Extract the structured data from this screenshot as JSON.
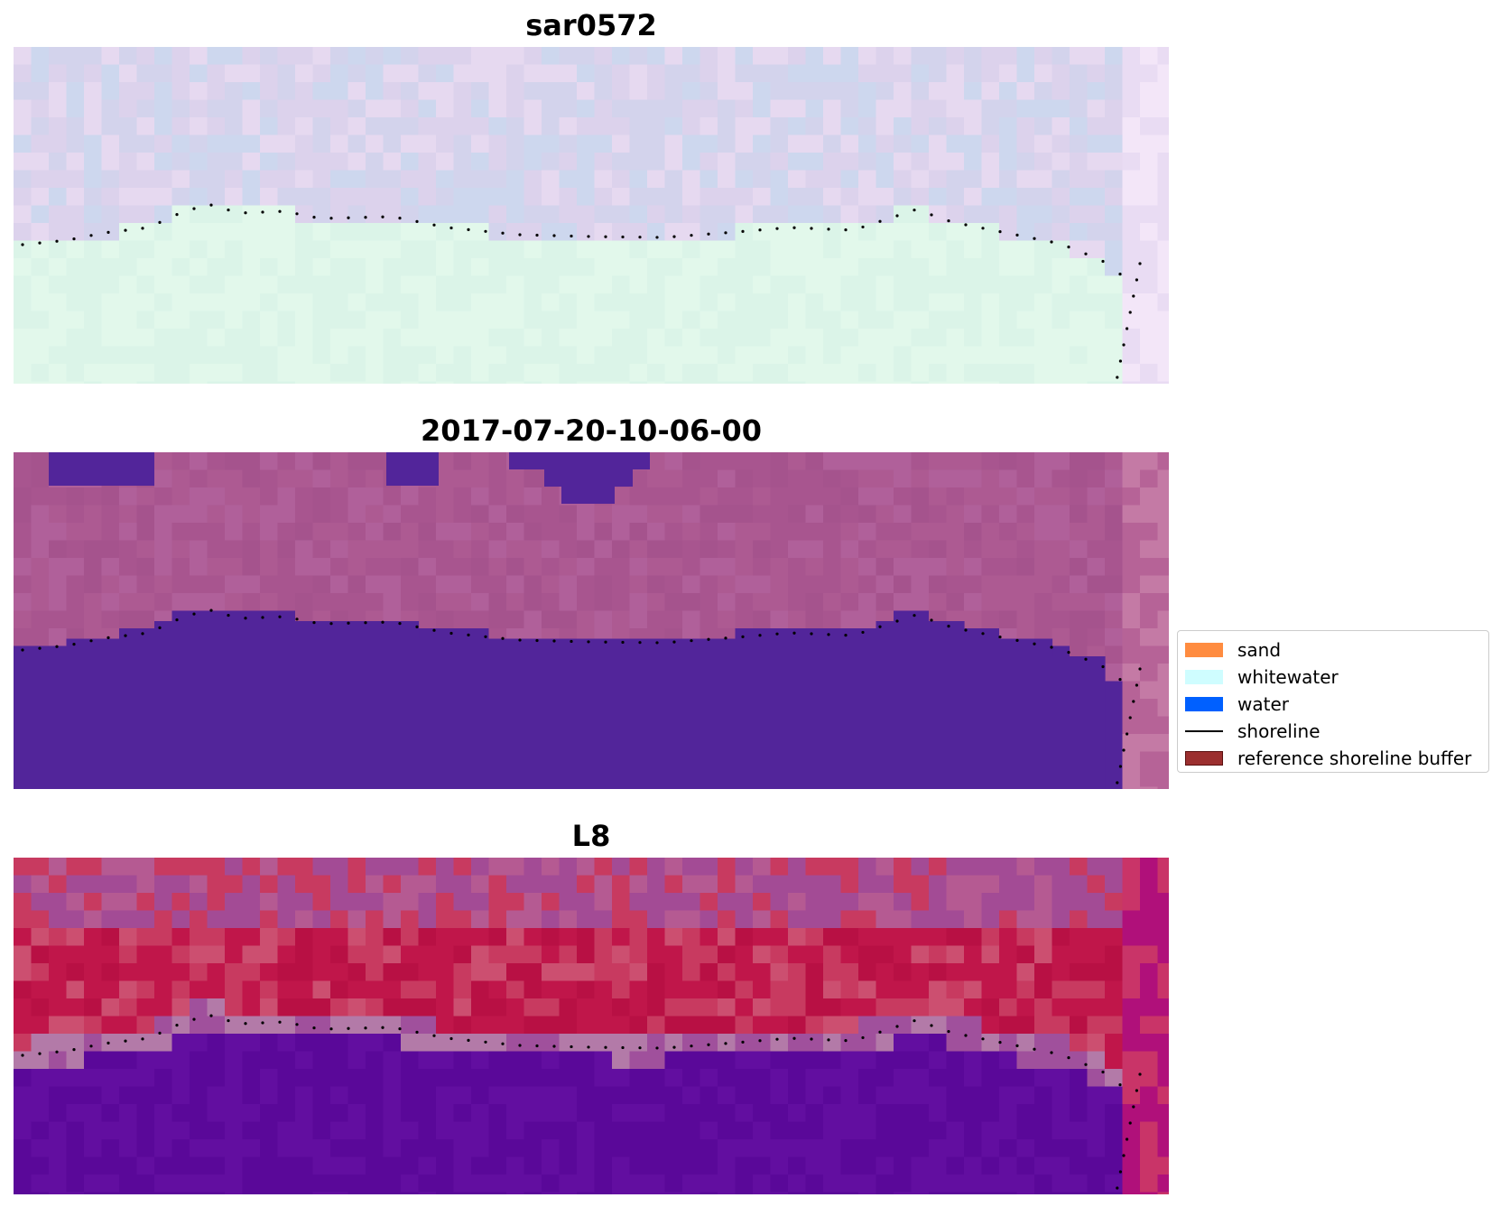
{
  "panels": [
    {
      "title": "sar0572",
      "palette": {
        "land_a": "#d3d3ec",
        "land_b": "#dcd2ec",
        "land_c": "#e6d9f0",
        "land_d": "#cdd7ee",
        "sea_a": "#dbf4e8",
        "sea_b": "#e2f8eb",
        "edge_a": "#e9dcf3",
        "edge_b": "#f3e6f8"
      }
    },
    {
      "title": "2017-07-20-10-06-00",
      "palette": {
        "land_a": "#a8558f",
        "land_b": "#ad5a92",
        "land_c": "#b0609a",
        "land_d": "#a5538d",
        "sea_a": "#52259a",
        "sea_b": "#52259a",
        "edge_a": "#b66397",
        "edge_b": "#c47aa5",
        "mask": "#52259a"
      }
    },
    {
      "title": "L8",
      "palette": {
        "land_a": "#c0164a",
        "land_b": "#c83a60",
        "land_c": "#cc4f70",
        "land_d": "#b81044",
        "land_top_a": "#a34b95",
        "land_top_b": "#b55a92",
        "band_a": "#a0509c",
        "band_b": "#b37aa8",
        "sea_a": "#5a0899",
        "sea_b": "#620ea0",
        "edge_a": "#c93468",
        "edge_b": "#b0107a"
      }
    }
  ],
  "legend": {
    "items": [
      {
        "label": "sand",
        "type": "patch",
        "color": "#ff8c40",
        "border": "#ff8c40"
      },
      {
        "label": "whitewater",
        "type": "patch",
        "color": "#cffdff",
        "border": "#cffdff"
      },
      {
        "label": "water",
        "type": "patch",
        "color": "#0060ff",
        "border": "#0060ff"
      },
      {
        "label": "shoreline",
        "type": "line",
        "color": "#000000"
      },
      {
        "label": "reference shoreline buffer",
        "type": "patch",
        "color": "#9b2f2f",
        "border": "#5a1010"
      }
    ]
  }
}
